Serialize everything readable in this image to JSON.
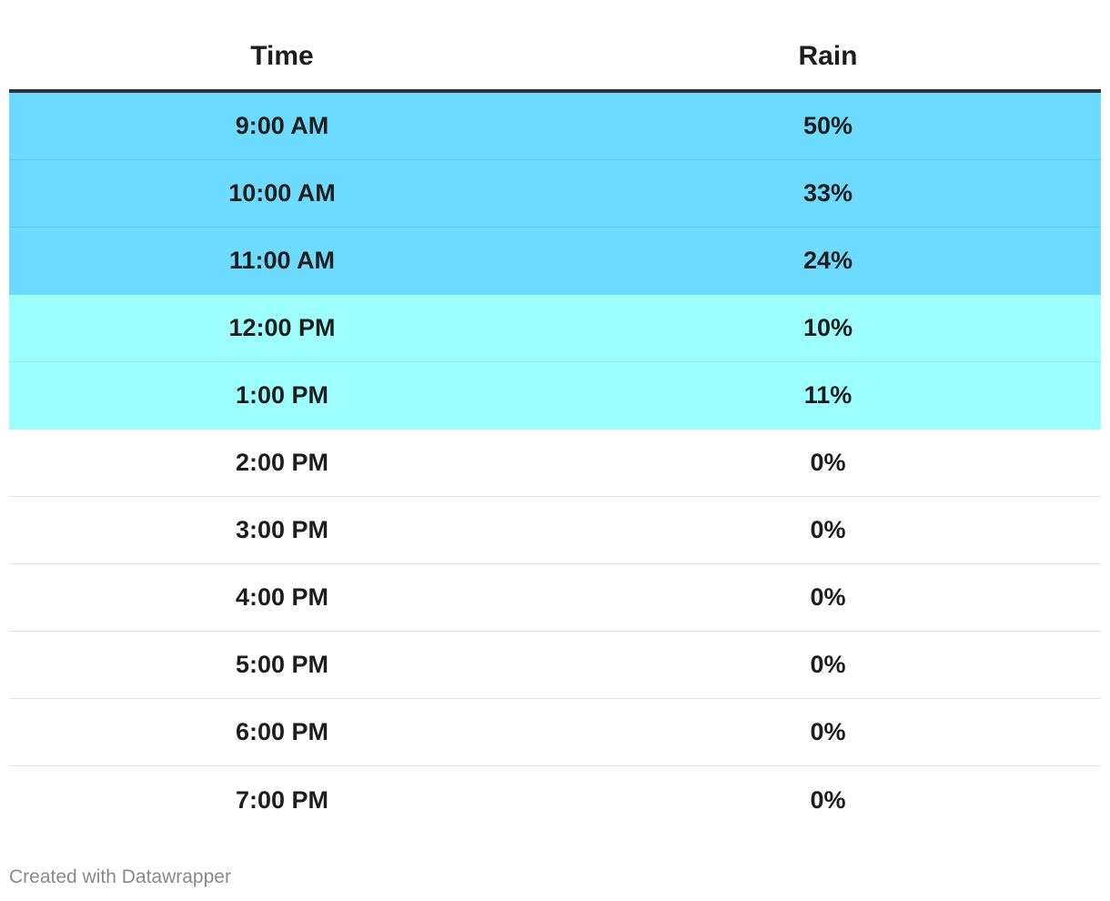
{
  "chart_data": {
    "type": "table",
    "columns": [
      "Time",
      "Rain"
    ],
    "rows": [
      {
        "time": "9:00 AM",
        "rain": "50%",
        "value": 50,
        "color": "#6ddaff",
        "divider": "#5cc9ee"
      },
      {
        "time": "10:00 AM",
        "rain": "33%",
        "value": 33,
        "color": "#6ddaff",
        "divider": "#5cc9ee"
      },
      {
        "time": "11:00 AM",
        "rain": "24%",
        "value": 24,
        "color": "#6ddaff",
        "divider": "#6ddaff"
      },
      {
        "time": "12:00 PM",
        "rain": "10%",
        "value": 10,
        "color": "#9effff",
        "divider": "#86eef2"
      },
      {
        "time": "1:00 PM",
        "rain": "11%",
        "value": 11,
        "color": "#9effff",
        "divider": "#9effff"
      },
      {
        "time": "2:00 PM",
        "rain": "0%",
        "value": 0,
        "color": "#ffffff",
        "divider": "#e4e4e4"
      },
      {
        "time": "3:00 PM",
        "rain": "0%",
        "value": 0,
        "color": "#ffffff",
        "divider": "#e4e4e4"
      },
      {
        "time": "4:00 PM",
        "rain": "0%",
        "value": 0,
        "color": "#ffffff",
        "divider": "#e4e4e4"
      },
      {
        "time": "5:00 PM",
        "rain": "0%",
        "value": 0,
        "color": "#ffffff",
        "divider": "#e4e4e4"
      },
      {
        "time": "6:00 PM",
        "rain": "0%",
        "value": 0,
        "color": "#ffffff",
        "divider": "#e4e4e4"
      },
      {
        "time": "7:00 PM",
        "rain": "0%",
        "value": 0,
        "color": "#ffffff",
        "divider": "#e4e4e4"
      }
    ]
  },
  "footer": {
    "credit": "Created with Datawrapper"
  }
}
